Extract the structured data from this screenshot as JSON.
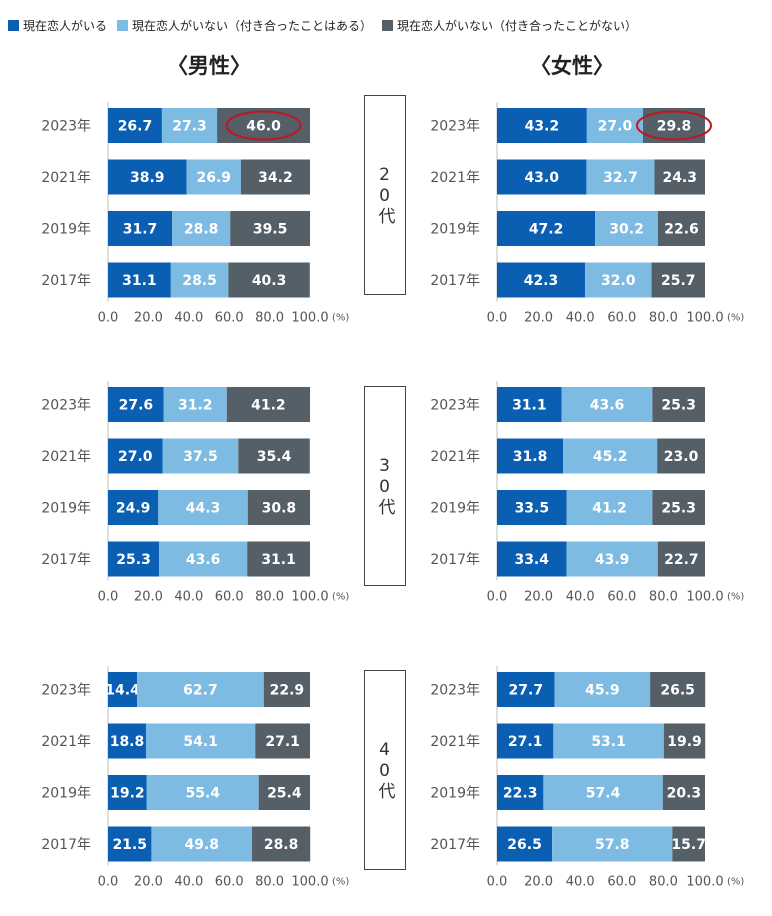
{
  "legend": [
    {
      "label": "現在恋人がいる",
      "color": "#0b5fb3"
    },
    {
      "label": "現在恋人がいない（付き合ったことはある）",
      "color": "#7dbbe2"
    },
    {
      "label": "現在恋人がいない（付き合ったことがない）",
      "color": "#555f68"
    }
  ],
  "titles": {
    "male": "〈男性〉",
    "female": "〈女性〉"
  },
  "age_labels": [
    "20代",
    "30代",
    "40代"
  ],
  "chart_data": [
    {
      "type": "bar",
      "orientation": "horizontal",
      "stacked": true,
      "gender": "男性",
      "age": "20代",
      "categories": [
        "2023年",
        "2021年",
        "2019年",
        "2017年"
      ],
      "series": [
        {
          "name": "現在恋人がいる",
          "values": [
            26.7,
            38.9,
            31.7,
            31.1
          ]
        },
        {
          "name": "現在恋人がいない（付き合ったことはある）",
          "values": [
            27.3,
            26.9,
            28.8,
            28.5
          ]
        },
        {
          "name": "現在恋人がいない（付き合ったことがない）",
          "values": [
            46.0,
            34.2,
            39.5,
            40.3
          ]
        }
      ],
      "xlim": [
        0,
        100
      ],
      "xticks": [
        "0.0",
        "20.0",
        "40.0",
        "60.0",
        "80.0",
        "100.0"
      ],
      "unit": "(%)",
      "highlight": {
        "series": 2,
        "category": 0
      }
    },
    {
      "type": "bar",
      "orientation": "horizontal",
      "stacked": true,
      "gender": "女性",
      "age": "20代",
      "categories": [
        "2023年",
        "2021年",
        "2019年",
        "2017年"
      ],
      "series": [
        {
          "name": "現在恋人がいる",
          "values": [
            43.2,
            43.0,
            47.2,
            42.3
          ]
        },
        {
          "name": "現在恋人がいない（付き合ったことはある）",
          "values": [
            27.0,
            32.7,
            30.2,
            32.0
          ]
        },
        {
          "name": "現在恋人がいない（付き合ったことがない）",
          "values": [
            29.8,
            24.3,
            22.6,
            25.7
          ]
        }
      ],
      "xlim": [
        0,
        100
      ],
      "xticks": [
        "0.0",
        "20.0",
        "40.0",
        "60.0",
        "80.0",
        "100.0"
      ],
      "unit": "(%)",
      "highlight": {
        "series": 2,
        "category": 0
      }
    },
    {
      "type": "bar",
      "orientation": "horizontal",
      "stacked": true,
      "gender": "男性",
      "age": "30代",
      "categories": [
        "2023年",
        "2021年",
        "2019年",
        "2017年"
      ],
      "series": [
        {
          "name": "現在恋人がいる",
          "values": [
            27.6,
            27.0,
            24.9,
            25.3
          ]
        },
        {
          "name": "現在恋人がいない（付き合ったことはある）",
          "values": [
            31.2,
            37.5,
            44.3,
            43.6
          ]
        },
        {
          "name": "現在恋人がいない（付き合ったことがない）",
          "values": [
            41.2,
            35.4,
            30.8,
            31.1
          ]
        }
      ],
      "xlim": [
        0,
        100
      ],
      "xticks": [
        "0.0",
        "20.0",
        "40.0",
        "60.0",
        "80.0",
        "100.0"
      ],
      "unit": "(%)"
    },
    {
      "type": "bar",
      "orientation": "horizontal",
      "stacked": true,
      "gender": "女性",
      "age": "30代",
      "categories": [
        "2023年",
        "2021年",
        "2019年",
        "2017年"
      ],
      "series": [
        {
          "name": "現在恋人がいる",
          "values": [
            31.1,
            31.8,
            33.5,
            33.4
          ]
        },
        {
          "name": "現在恋人がいない（付き合ったことはある）",
          "values": [
            43.6,
            45.2,
            41.2,
            43.9
          ]
        },
        {
          "name": "現在恋人がいない（付き合ったことがない）",
          "values": [
            25.3,
            23.0,
            25.3,
            22.7
          ]
        }
      ],
      "xlim": [
        0,
        100
      ],
      "xticks": [
        "0.0",
        "20.0",
        "40.0",
        "60.0",
        "80.0",
        "100.0"
      ],
      "unit": "(%)"
    },
    {
      "type": "bar",
      "orientation": "horizontal",
      "stacked": true,
      "gender": "男性",
      "age": "40代",
      "categories": [
        "2023年",
        "2021年",
        "2019年",
        "2017年"
      ],
      "series": [
        {
          "name": "現在恋人がいる",
          "values": [
            14.4,
            18.8,
            19.2,
            21.5
          ]
        },
        {
          "name": "現在恋人がいない（付き合ったことはある）",
          "values": [
            62.7,
            54.1,
            55.4,
            49.8
          ]
        },
        {
          "name": "現在恋人がいない（付き合ったことがない）",
          "values": [
            22.9,
            27.1,
            25.4,
            28.8
          ]
        }
      ],
      "xlim": [
        0,
        100
      ],
      "xticks": [
        "0.0",
        "20.0",
        "40.0",
        "60.0",
        "80.0",
        "100.0"
      ],
      "unit": "(%)"
    },
    {
      "type": "bar",
      "orientation": "horizontal",
      "stacked": true,
      "gender": "女性",
      "age": "40代",
      "categories": [
        "2023年",
        "2021年",
        "2019年",
        "2017年"
      ],
      "series": [
        {
          "name": "現在恋人がいる",
          "values": [
            27.7,
            27.1,
            22.3,
            26.5
          ]
        },
        {
          "name": "現在恋人がいない（付き合ったことはある）",
          "values": [
            45.9,
            53.1,
            57.4,
            57.8
          ]
        },
        {
          "name": "現在恋人がいない（付き合ったことがない）",
          "values": [
            26.5,
            19.9,
            20.3,
            15.7
          ]
        }
      ],
      "xlim": [
        0,
        100
      ],
      "xticks": [
        "0.0",
        "20.0",
        "40.0",
        "60.0",
        "80.0",
        "100.0"
      ],
      "unit": "(%)"
    }
  ]
}
